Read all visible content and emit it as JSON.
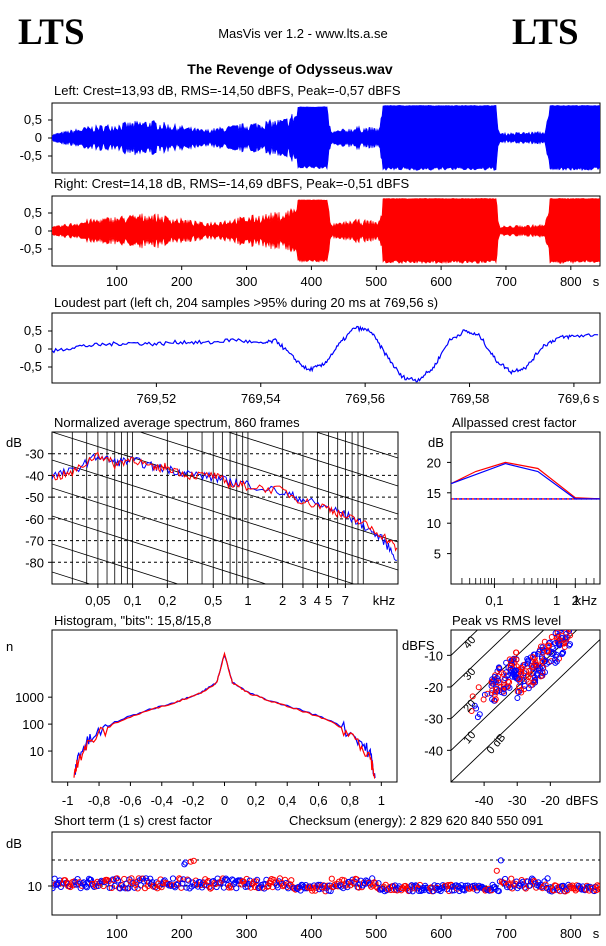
{
  "header": {
    "logo_left": "LTS",
    "logo_right": "LTS",
    "app": "MasVis ver 1.2 - www.lts.a.se",
    "file_title": "The Revenge of Odysseus.wav"
  },
  "colors": {
    "left": "#0000ff",
    "right": "#ff0000",
    "axes": "#000000"
  },
  "chart_data": [
    {
      "id": "waveform-left",
      "type": "area",
      "title": "Left: Crest=13,93 dB, RMS=-14,50 dBFS, Peak=-0,57 dBFS",
      "ylim": [
        -1,
        1
      ],
      "yticks": [
        "0,5",
        "0",
        "-0,5"
      ],
      "xlim": [
        0,
        845
      ],
      "envelope_breakpoints": [
        {
          "t": 0,
          "amp": 0.12
        },
        {
          "t": 55,
          "amp": 0.35
        },
        {
          "t": 150,
          "amp": 0.55
        },
        {
          "t": 235,
          "amp": 0.25
        },
        {
          "t": 300,
          "amp": 0.45
        },
        {
          "t": 360,
          "amp": 0.6
        },
        {
          "t": 380,
          "amp": 0.92
        },
        {
          "t": 425,
          "amp": 0.92
        },
        {
          "t": 430,
          "amp": 0.2
        },
        {
          "t": 470,
          "amp": 0.35
        },
        {
          "t": 505,
          "amp": 0.3
        },
        {
          "t": 510,
          "amp": 0.96
        },
        {
          "t": 685,
          "amp": 0.96
        },
        {
          "t": 690,
          "amp": 0.15
        },
        {
          "t": 760,
          "amp": 0.2
        },
        {
          "t": 768,
          "amp": 0.96
        },
        {
          "t": 845,
          "amp": 0.96
        }
      ]
    },
    {
      "id": "waveform-right",
      "type": "area",
      "title": "Right: Crest=14,18 dB, RMS=-14,69 dBFS, Peak=-0,51 dBFS",
      "ylim": [
        -1,
        1
      ],
      "yticks": [
        "0,5",
        "0",
        "-0,5"
      ],
      "xlim": [
        0,
        845
      ],
      "xticks": [
        "100",
        "200",
        "300",
        "400",
        "500",
        "600",
        "700",
        "800"
      ],
      "xunit": "s",
      "envelope_breakpoints": [
        {
          "t": 0,
          "amp": 0.12
        },
        {
          "t": 55,
          "amp": 0.35
        },
        {
          "t": 150,
          "amp": 0.55
        },
        {
          "t": 235,
          "amp": 0.25
        },
        {
          "t": 300,
          "amp": 0.45
        },
        {
          "t": 360,
          "amp": 0.6
        },
        {
          "t": 380,
          "amp": 0.92
        },
        {
          "t": 425,
          "amp": 0.92
        },
        {
          "t": 430,
          "amp": 0.2
        },
        {
          "t": 470,
          "amp": 0.35
        },
        {
          "t": 505,
          "amp": 0.3
        },
        {
          "t": 510,
          "amp": 0.96
        },
        {
          "t": 685,
          "amp": 0.96
        },
        {
          "t": 690,
          "amp": 0.15
        },
        {
          "t": 760,
          "amp": 0.2
        },
        {
          "t": 768,
          "amp": 0.96
        },
        {
          "t": 845,
          "amp": 0.96
        }
      ]
    },
    {
      "id": "loudest-part",
      "type": "line",
      "title": "Loudest part (left  ch, 204 samples >95% during 20 ms at 769,56 s)",
      "ylim": [
        -1,
        1
      ],
      "yticks": [
        "0,5",
        "0",
        "-0,5"
      ],
      "xlim": [
        769.5,
        769.605
      ],
      "xticks": [
        "769,52",
        "769,54",
        "769,56",
        "769,58",
        "769,6"
      ],
      "xunit": "s",
      "points": [
        [
          769.5,
          -0.1
        ],
        [
          769.505,
          0.05
        ],
        [
          769.51,
          0.1
        ],
        [
          769.515,
          0.15
        ],
        [
          769.52,
          0.12
        ],
        [
          769.525,
          0.18
        ],
        [
          769.53,
          0.15
        ],
        [
          769.535,
          0.25
        ],
        [
          769.54,
          0.12
        ],
        [
          769.543,
          0.22
        ],
        [
          769.546,
          -0.25
        ],
        [
          769.549,
          -0.65
        ],
        [
          769.552,
          -0.5
        ],
        [
          769.555,
          0.1
        ],
        [
          769.558,
          0.6
        ],
        [
          769.561,
          0.5
        ],
        [
          769.564,
          -0.2
        ],
        [
          769.567,
          -0.85
        ],
        [
          769.57,
          -0.95
        ],
        [
          769.573,
          -0.6
        ],
        [
          769.576,
          0.2
        ],
        [
          769.579,
          0.5
        ],
        [
          769.582,
          0.35
        ],
        [
          769.585,
          -0.35
        ],
        [
          769.588,
          -0.7
        ],
        [
          769.591,
          -0.55
        ],
        [
          769.594,
          0.05
        ],
        [
          769.597,
          0.3
        ],
        [
          769.6,
          0.35
        ],
        [
          769.605,
          0.4
        ]
      ]
    },
    {
      "id": "spectrum",
      "type": "line",
      "title": "Normalized average spectrum, 860 frames",
      "ylabel": "dB",
      "xunit": "kHz",
      "ylim": [
        -90,
        -20
      ],
      "xlim_khz": [
        0.02,
        20
      ],
      "log_x": true,
      "yticks": [
        "-30",
        "-40",
        "-50",
        "-60",
        "-70",
        "-80"
      ],
      "xticks": [
        "0,05",
        "0,1",
        "0,2",
        "0,5",
        "1",
        "2",
        "3",
        "4",
        "5",
        "7"
      ],
      "series": [
        {
          "points": [
            [
              0.02,
              -40
            ],
            [
              0.03,
              -38
            ],
            [
              0.05,
              -31
            ],
            [
              0.07,
              -34
            ],
            [
              0.1,
              -33
            ],
            [
              0.15,
              -36
            ],
            [
              0.2,
              -37
            ],
            [
              0.3,
              -39
            ],
            [
              0.5,
              -41
            ],
            [
              0.7,
              -43
            ],
            [
              1,
              -44
            ],
            [
              2,
              -48
            ],
            [
              3,
              -51
            ],
            [
              5,
              -55
            ],
            [
              7,
              -58
            ],
            [
              10,
              -63
            ],
            [
              15,
              -70
            ],
            [
              20,
              -79
            ]
          ]
        },
        {
          "points": [
            [
              0.02,
              -41
            ],
            [
              0.03,
              -39
            ],
            [
              0.05,
              -30
            ],
            [
              0.07,
              -35
            ],
            [
              0.1,
              -32
            ],
            [
              0.15,
              -37
            ],
            [
              0.2,
              -36
            ],
            [
              0.3,
              -40
            ],
            [
              0.5,
              -40
            ],
            [
              0.7,
              -44
            ],
            [
              1,
              -45
            ],
            [
              2,
              -47
            ],
            [
              3,
              -52
            ],
            [
              5,
              -55
            ],
            [
              7,
              -59
            ],
            [
              10,
              -62
            ],
            [
              15,
              -68
            ],
            [
              20,
              -74
            ]
          ]
        }
      ]
    },
    {
      "id": "allpassed-crest",
      "type": "line",
      "title": "Allpassed crest factor",
      "ylabel": "dB",
      "xunit": "kHz",
      "ylim": [
        0,
        25
      ],
      "log_x": true,
      "yticks": [
        "20",
        "15",
        "10",
        "5"
      ],
      "xticks": [
        "0,1",
        "1",
        "2"
      ],
      "series": [
        {
          "points": [
            [
              0.02,
              16.5
            ],
            [
              0.05,
              18.5
            ],
            [
              0.15,
              20
            ],
            [
              0.5,
              19
            ],
            [
              2,
              14.2
            ],
            [
              5,
              14
            ]
          ]
        },
        {
          "points": [
            [
              0.02,
              16.5
            ],
            [
              0.05,
              18
            ],
            [
              0.15,
              19.8
            ],
            [
              0.5,
              18.5
            ],
            [
              2,
              14
            ],
            [
              5,
              14
            ]
          ]
        }
      ],
      "reference_levels": [
        14,
        14.2
      ]
    },
    {
      "id": "histogram",
      "type": "line",
      "title": "Histogram, \"bits\": 15,8/15,8",
      "ylabel": "n",
      "log_y": true,
      "xlim": [
        -1.1,
        1.1
      ],
      "yticks": [
        "1000",
        "100",
        "10"
      ],
      "xticks": [
        "-1",
        "-0,8",
        "-0,6",
        "-0,4",
        "-0,2",
        "0",
        "0,2",
        "0,4",
        "0,6",
        "0,8",
        "1"
      ],
      "series": [
        {
          "points": [
            [
              -0.96,
              1
            ],
            [
              -0.93,
              8
            ],
            [
              -0.85,
              30
            ],
            [
              -0.7,
              120
            ],
            [
              -0.5,
              320
            ],
            [
              -0.3,
              700
            ],
            [
              -0.15,
              1500
            ],
            [
              -0.05,
              3500
            ],
            [
              0,
              40000
            ],
            [
              0.05,
              3500
            ],
            [
              0.15,
              1500
            ],
            [
              0.3,
              700
            ],
            [
              0.5,
              320
            ],
            [
              0.7,
              120
            ],
            [
              0.85,
              30
            ],
            [
              0.93,
              8
            ],
            [
              0.96,
              1
            ]
          ]
        },
        {
          "points": [
            [
              -0.96,
              1
            ],
            [
              -0.93,
              6
            ],
            [
              -0.85,
              25
            ],
            [
              -0.7,
              110
            ],
            [
              -0.5,
              300
            ],
            [
              -0.3,
              680
            ],
            [
              -0.15,
              1450
            ],
            [
              -0.05,
              3400
            ],
            [
              0,
              40000
            ],
            [
              0.05,
              3400
            ],
            [
              0.15,
              1450
            ],
            [
              0.3,
              680
            ],
            [
              0.5,
              300
            ],
            [
              0.7,
              110
            ],
            [
              0.85,
              25
            ],
            [
              0.93,
              6
            ],
            [
              0.96,
              1
            ]
          ]
        }
      ]
    },
    {
      "id": "peak-vs-rms",
      "type": "scatter",
      "title": "Peak vs RMS level",
      "ylabel": "dBFS",
      "xunit": "dBFS",
      "xlim": [
        -50,
        -5
      ],
      "ylim": [
        -50,
        -2
      ],
      "xticks": [
        "-40",
        "-30",
        "-20"
      ],
      "yticks": [
        "-10",
        "-20",
        "-30",
        "-40"
      ],
      "crest_lines": [
        "40",
        "30",
        "20",
        "10",
        "0 dB"
      ]
    },
    {
      "id": "short-term-crest",
      "type": "scatter",
      "title": "Short term (1 s) crest factor",
      "annotation": "Checksum (energy):  2 829 620 840 550 091",
      "ylabel": "dB",
      "yticks": [
        "10"
      ],
      "xlim": [
        0,
        845
      ],
      "xticks": [
        "100",
        "200",
        "300",
        "400",
        "500",
        "600",
        "700",
        "800"
      ],
      "xunit": "s",
      "reference_levels": [
        10,
        20
      ]
    }
  ]
}
